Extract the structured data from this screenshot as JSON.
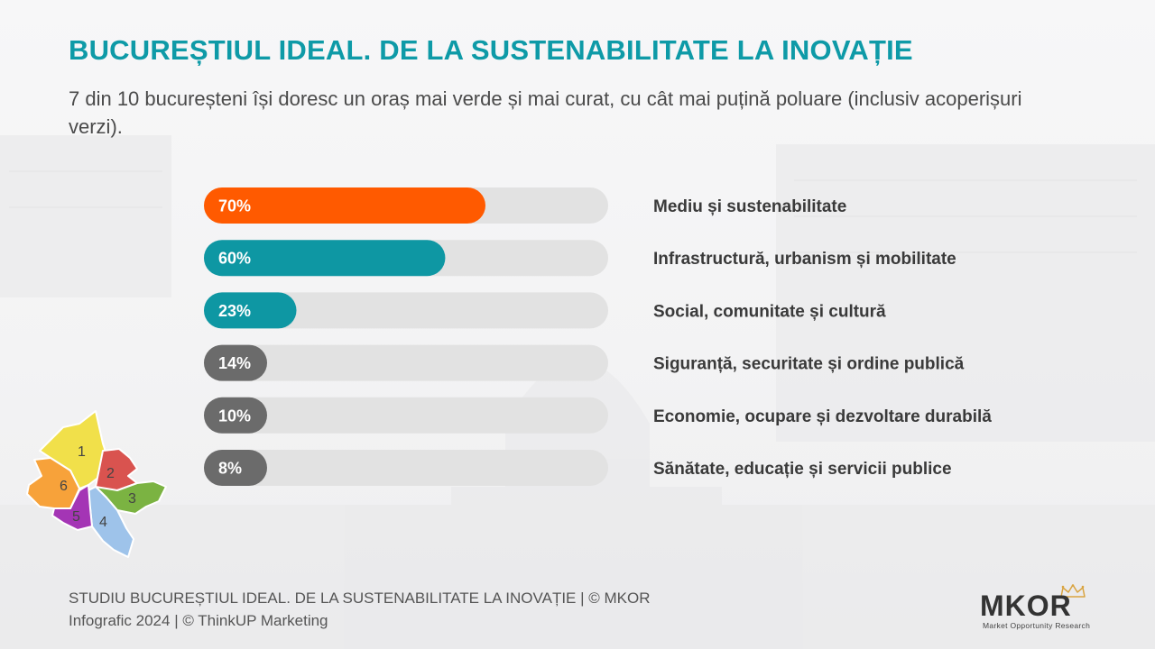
{
  "title": "BUCUREȘTIUL IDEAL. DE LA SUSTENABILITATE LA INOVAȚIE",
  "subtitle": "7 din 10 bucureșteni își doresc un oraș mai verde și mai curat, cu cât mai puțină poluare (inclusiv acoperișuri verzi).",
  "colors": {
    "title": "#0e9aa7",
    "orange": "#ff5a00",
    "teal": "#0e97a3",
    "gray": "#6b6b6b",
    "track": "#e2e2e2"
  },
  "chart_data": {
    "type": "bar",
    "orientation": "horizontal",
    "xlim": [
      0,
      100
    ],
    "categories": [
      "Mediu și sustenabilitate",
      "Infrastructură, urbanism și mobilitate",
      "Social, comunitate și cultură",
      "Siguranță, securitate și ordine publică",
      "Economie, ocupare și dezvoltare durabilă",
      "Sănătate, educație și servicii publice"
    ],
    "values": [
      70,
      60,
      23,
      14,
      10,
      8
    ],
    "value_labels": [
      "70%",
      "60%",
      "23%",
      "14%",
      "10%",
      "8%"
    ],
    "bar_colors": [
      "#ff5a00",
      "#0e97a3",
      "#0e97a3",
      "#6b6b6b",
      "#6b6b6b",
      "#6b6b6b"
    ]
  },
  "map": {
    "sector_labels": [
      "1",
      "2",
      "3",
      "4",
      "5",
      "6"
    ],
    "sector_colors": [
      "#f1e04a",
      "#d9534f",
      "#7bb342",
      "#9ec3ea",
      "#a435b5",
      "#f7a23a"
    ]
  },
  "footer": {
    "line1": "STUDIU BUCUREȘTIUL IDEAL. DE LA SUSTENABILITATE LA INOVAȚIE | © MKOR",
    "line2": "Infografic 2024 | © ThinkUP Marketing"
  },
  "logo": {
    "name": "MKOR",
    "tagline": "Market Opportunity Research"
  }
}
